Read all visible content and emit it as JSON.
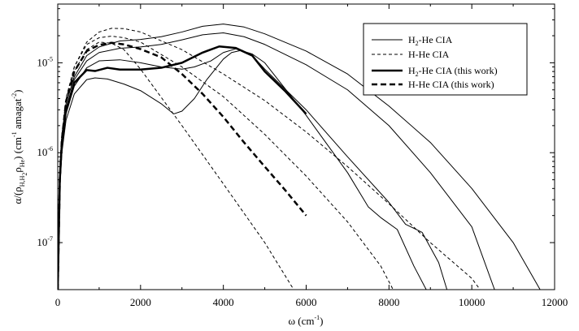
{
  "chart_data": {
    "type": "line",
    "title": "",
    "xlabel": {
      "base": "ω (cm",
      "sup": "-1",
      "tail": ")"
    },
    "ylabel": {
      "p1": "α/(ρ",
      "s1": "H,H",
      "s1b": "2",
      "p2": "ρ",
      "s2": "He",
      "p3": ") (cm",
      "sup1": "-1",
      "p4": " amagat",
      "sup2": "-2",
      "p5": ")"
    },
    "xlim": [
      0,
      12000
    ],
    "ylim": [
      3e-08,
      4.5e-05
    ],
    "yscale": "log",
    "xticks": [
      {
        "value": 0,
        "label": "0"
      },
      {
        "value": 2000,
        "label": "2000"
      },
      {
        "value": 4000,
        "label": "4000"
      },
      {
        "value": 6000,
        "label": "6000"
      },
      {
        "value": 8000,
        "label": "8000"
      },
      {
        "value": 10000,
        "label": "10000"
      },
      {
        "value": 12000,
        "label": "12000"
      }
    ],
    "yticks": [
      {
        "value": 1e-07,
        "base": "10",
        "exp": "-7"
      },
      {
        "value": 1e-06,
        "base": "10",
        "exp": "-6"
      },
      {
        "value": 1e-05,
        "base": "10",
        "exp": "-5"
      }
    ],
    "legend": {
      "position": "top-right",
      "entries": [
        {
          "style": "thin-solid",
          "parts": [
            "H",
            "2",
            "-He CIA"
          ]
        },
        {
          "style": "thin-dashed",
          "parts": [
            "H-He CIA"
          ]
        },
        {
          "style": "thick-solid",
          "parts": [
            "H",
            "2",
            "-He CIA (this work)"
          ]
        },
        {
          "style": "thick-dashed",
          "parts": [
            "H-He CIA (this work)"
          ]
        }
      ]
    },
    "series": [
      {
        "style": "thin-solid",
        "points": [
          [
            0,
            3e-08
          ],
          [
            50,
            6e-07
          ],
          [
            100,
            1.6e-06
          ],
          [
            200,
            3.5e-06
          ],
          [
            400,
            7e-06
          ],
          [
            700,
            1.2e-05
          ],
          [
            1000,
            1.5e-05
          ],
          [
            1500,
            1.75e-05
          ],
          [
            2000,
            1.82e-05
          ],
          [
            2500,
            1.95e-05
          ],
          [
            3000,
            2.2e-05
          ],
          [
            3500,
            2.55e-05
          ],
          [
            4000,
            2.7e-05
          ],
          [
            4500,
            2.5e-05
          ],
          [
            5000,
            2.1e-05
          ],
          [
            6000,
            1.35e-05
          ],
          [
            7000,
            7.5e-06
          ],
          [
            8000,
            3.3e-06
          ],
          [
            9000,
            1.3e-06
          ],
          [
            10000,
            4e-07
          ],
          [
            11000,
            1e-07
          ],
          [
            11650,
            3e-08
          ]
        ]
      },
      {
        "style": "thin-solid",
        "points": [
          [
            0,
            3e-08
          ],
          [
            50,
            5e-07
          ],
          [
            100,
            1.4e-06
          ],
          [
            200,
            3e-06
          ],
          [
            400,
            6.5e-06
          ],
          [
            700,
            1.05e-05
          ],
          [
            1000,
            1.3e-05
          ],
          [
            1500,
            1.45e-05
          ],
          [
            2000,
            1.5e-05
          ],
          [
            2500,
            1.6e-05
          ],
          [
            3000,
            1.8e-05
          ],
          [
            3500,
            2.05e-05
          ],
          [
            4000,
            2.15e-05
          ],
          [
            4500,
            1.95e-05
          ],
          [
            5000,
            1.6e-05
          ],
          [
            6000,
            9.5e-06
          ],
          [
            7000,
            5e-06
          ],
          [
            8000,
            2e-06
          ],
          [
            9000,
            6e-07
          ],
          [
            10000,
            1.5e-07
          ],
          [
            10550,
            3e-08
          ]
        ]
      },
      {
        "style": "thin-solid",
        "points": [
          [
            0,
            3e-08
          ],
          [
            50,
            4.5e-07
          ],
          [
            100,
            1.2e-06
          ],
          [
            200,
            2.7e-06
          ],
          [
            400,
            5.5e-06
          ],
          [
            700,
            8.8e-06
          ],
          [
            1000,
            1.05e-05
          ],
          [
            1500,
            1.08e-05
          ],
          [
            2000,
            1e-05
          ],
          [
            2500,
            9e-06
          ],
          [
            3000,
            8.5e-06
          ],
          [
            3300,
            9e-06
          ],
          [
            3700,
            1.05e-05
          ],
          [
            4000,
            1.3e-05
          ],
          [
            4300,
            1.43e-05
          ],
          [
            4700,
            1.25e-05
          ],
          [
            5000,
            1e-05
          ],
          [
            6000,
            2.6e-06
          ],
          [
            7000,
            6e-07
          ],
          [
            7500,
            2.5e-07
          ],
          [
            7800,
            1.9e-07
          ],
          [
            8200,
            1.4e-07
          ],
          [
            8600,
            5.5e-08
          ],
          [
            8900,
            3e-08
          ]
        ]
      },
      {
        "style": "thin-solid",
        "points": [
          [
            0,
            3e-08
          ],
          [
            50,
            4e-07
          ],
          [
            100,
            1e-06
          ],
          [
            200,
            2.3e-06
          ],
          [
            400,
            4.5e-06
          ],
          [
            700,
            6.5e-06
          ],
          [
            900,
            6.8e-06
          ],
          [
            1200,
            6.6e-06
          ],
          [
            1600,
            5.8e-06
          ],
          [
            2000,
            4.9e-06
          ],
          [
            2500,
            3.5e-06
          ],
          [
            2800,
            2.7e-06
          ],
          [
            3000,
            2.9e-06
          ],
          [
            3300,
            4e-06
          ],
          [
            3600,
            6.5e-06
          ],
          [
            4000,
            1.1e-05
          ],
          [
            4200,
            1.3e-05
          ],
          [
            4450,
            1.38e-05
          ],
          [
            4700,
            1.2e-05
          ],
          [
            5000,
            8.5e-06
          ],
          [
            6000,
            3e-06
          ],
          [
            7000,
            9e-07
          ],
          [
            8000,
            2.8e-07
          ],
          [
            8400,
            1.6e-07
          ],
          [
            8800,
            1.3e-07
          ],
          [
            9200,
            6e-08
          ],
          [
            9400,
            3e-08
          ]
        ]
      },
      {
        "style": "thin-dashed",
        "points": [
          [
            0,
            3e-08
          ],
          [
            50,
            5e-07
          ],
          [
            100,
            1.5e-06
          ],
          [
            200,
            4e-06
          ],
          [
            400,
            9e-06
          ],
          [
            700,
            1.7e-05
          ],
          [
            1000,
            2.2e-05
          ],
          [
            1300,
            2.42e-05
          ],
          [
            1600,
            2.4e-05
          ],
          [
            2000,
            2.2e-05
          ],
          [
            3000,
            1.4e-05
          ],
          [
            4000,
            7.5e-06
          ],
          [
            5000,
            3.8e-06
          ],
          [
            6000,
            1.7e-06
          ],
          [
            7000,
            7e-07
          ],
          [
            8000,
            2.7e-07
          ],
          [
            9000,
            1e-07
          ],
          [
            10000,
            4e-08
          ],
          [
            10200,
            3e-08
          ]
        ]
      },
      {
        "style": "thin-dashed",
        "points": [
          [
            0,
            3e-08
          ],
          [
            50,
            5e-07
          ],
          [
            100,
            1.5e-06
          ],
          [
            200,
            4e-06
          ],
          [
            400,
            9e-06
          ],
          [
            700,
            1.6e-05
          ],
          [
            1000,
            1.9e-05
          ],
          [
            1300,
            1.98e-05
          ],
          [
            1600,
            1.9e-05
          ],
          [
            2000,
            1.7e-05
          ],
          [
            3000,
            9e-06
          ],
          [
            4000,
            4.2e-06
          ],
          [
            5000,
            1.6e-06
          ],
          [
            6000,
            5.5e-07
          ],
          [
            7000,
            1.7e-07
          ],
          [
            7800,
            5.5e-08
          ],
          [
            8100,
            3e-08
          ]
        ]
      },
      {
        "style": "thin-dashed",
        "points": [
          [
            0,
            3e-08
          ],
          [
            50,
            4.5e-07
          ],
          [
            100,
            1.3e-06
          ],
          [
            200,
            3.5e-06
          ],
          [
            400,
            8e-06
          ],
          [
            700,
            1.4e-05
          ],
          [
            1000,
            1.7e-05
          ],
          [
            1300,
            1.65e-05
          ],
          [
            1600,
            1.4e-05
          ],
          [
            2000,
            8.5e-06
          ],
          [
            3000,
            2e-06
          ],
          [
            4000,
            4.5e-07
          ],
          [
            5000,
            1e-07
          ],
          [
            5700,
            3e-08
          ]
        ]
      },
      {
        "style": "thick-solid",
        "points": [
          [
            0,
            3e-08
          ],
          [
            50,
            5e-07
          ],
          [
            100,
            1.3e-06
          ],
          [
            200,
            3e-06
          ],
          [
            400,
            6e-06
          ],
          [
            700,
            8.3e-06
          ],
          [
            900,
            8.1e-06
          ],
          [
            1200,
            8.8e-06
          ],
          [
            1500,
            8.4e-06
          ],
          [
            2000,
            8.4e-06
          ],
          [
            2500,
            8.8e-06
          ],
          [
            3000,
            1e-05
          ],
          [
            3500,
            1.3e-05
          ],
          [
            3900,
            1.52e-05
          ],
          [
            4300,
            1.46e-05
          ],
          [
            4700,
            1.2e-05
          ],
          [
            5000,
            8e-06
          ],
          [
            5500,
            4.8e-06
          ],
          [
            6000,
            2.7e-06
          ]
        ]
      },
      {
        "style": "thick-dashed",
        "points": [
          [
            0,
            3e-08
          ],
          [
            50,
            5e-07
          ],
          [
            100,
            1.4e-06
          ],
          [
            200,
            3.7e-06
          ],
          [
            400,
            8e-06
          ],
          [
            700,
            1.35e-05
          ],
          [
            1000,
            1.58e-05
          ],
          [
            1300,
            1.67e-05
          ],
          [
            1600,
            1.6e-05
          ],
          [
            2000,
            1.42e-05
          ],
          [
            2500,
            1.15e-05
          ],
          [
            3000,
            7.5e-06
          ],
          [
            3500,
            4.5e-06
          ],
          [
            4000,
            2.5e-06
          ],
          [
            4500,
            1.3e-06
          ],
          [
            5000,
            7e-07
          ],
          [
            5500,
            3.8e-07
          ],
          [
            6000,
            2e-07
          ]
        ]
      }
    ]
  }
}
